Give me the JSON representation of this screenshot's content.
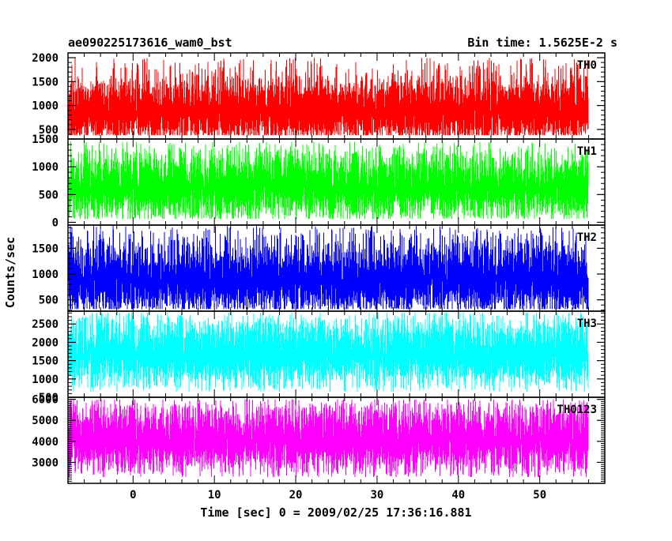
{
  "chart_data": {
    "type": "line",
    "title": "ae090225173616_wam0_bst",
    "bin_time": "Bin time: 1.5625E-2 s",
    "xlabel": "Time [sec] 0 = 2009/02/25 17:36:16.881",
    "ylabel": "Counts/sec",
    "xlim": [
      -8,
      58
    ],
    "x_data_range": [
      -7.9,
      56
    ],
    "x_ticks": [
      0,
      10,
      20,
      30,
      40,
      50
    ],
    "x_tick_labels": [
      "0",
      "10",
      "20",
      "30",
      "40",
      "50"
    ],
    "grid": false,
    "panels": [
      {
        "name": "TH0",
        "color": "#ff0000",
        "ylim": [
          300,
          2100
        ],
        "y_ticks": [
          500,
          1000,
          1500,
          2000
        ],
        "y_tick_labels": [
          "500",
          "1000",
          "1500",
          "2000"
        ],
        "series_min": 380,
        "series_max": 2000,
        "series_mean": 900
      },
      {
        "name": "TH1",
        "color": "#00ff00",
        "ylim": [
          -50,
          1500
        ],
        "y_ticks": [
          0,
          500,
          1000,
          1500
        ],
        "y_tick_labels": [
          "0",
          "500",
          "1000",
          "1500"
        ],
        "series_min": 60,
        "series_max": 1450,
        "series_mean": 650
      },
      {
        "name": "TH2",
        "color": "#0000ff",
        "ylim": [
          280,
          1950
        ],
        "y_ticks": [
          500,
          1000,
          1500
        ],
        "y_tick_labels": [
          "500",
          "1000",
          "1500"
        ],
        "series_min": 320,
        "series_max": 1950,
        "series_mean": 900
      },
      {
        "name": "TH3",
        "color": "#00ffff",
        "ylim": [
          500,
          2850
        ],
        "y_ticks": [
          500,
          1000,
          1500,
          2000,
          2500
        ],
        "y_tick_labels": [
          "500",
          "1000",
          "1500",
          "2000",
          "2500"
        ],
        "series_min": 650,
        "series_max": 2800,
        "series_mean": 1700
      },
      {
        "name": "TH0123",
        "color": "#ff00ff",
        "ylim": [
          2000,
          6100
        ],
        "y_ticks": [
          3000,
          4000,
          5000,
          6000
        ],
        "y_tick_labels": [
          "3000",
          "4000",
          "5000",
          "6000"
        ],
        "series_min": 2300,
        "series_max": 6000,
        "series_mean": 4100
      }
    ]
  }
}
